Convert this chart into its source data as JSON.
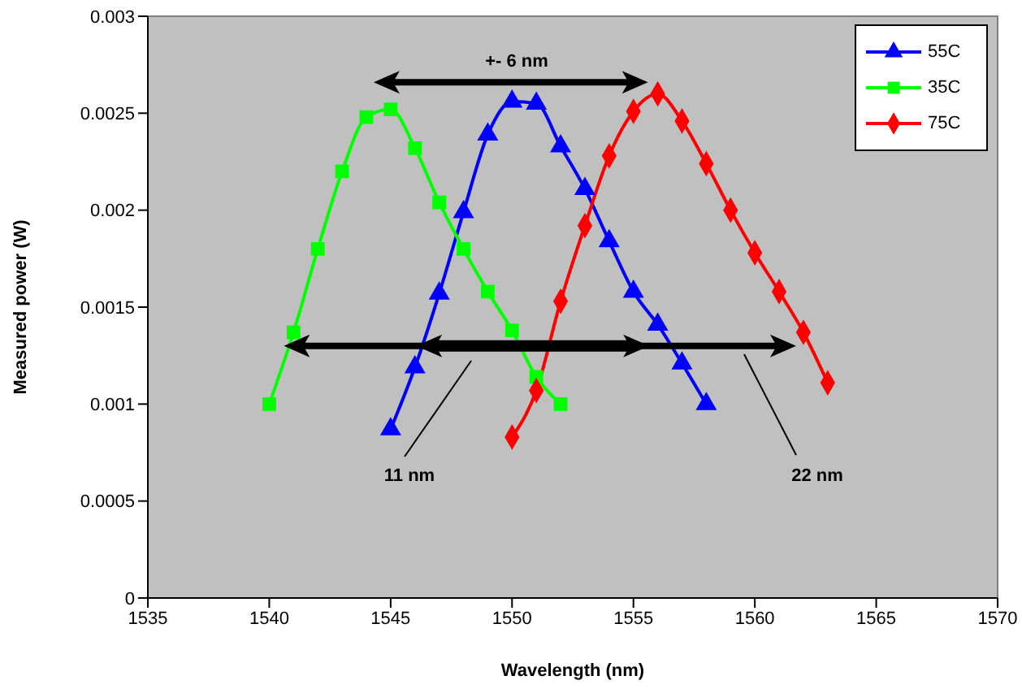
{
  "chart_data": {
    "type": "line",
    "xlabel": "Wavelength (nm)",
    "ylabel": "Measured power (W)",
    "xlim": [
      1535,
      1570
    ],
    "xticks": [
      1535,
      1540,
      1545,
      1550,
      1555,
      1560,
      1565,
      1570
    ],
    "ylim": [
      0,
      0.003
    ],
    "yticks": [
      0,
      0.0005,
      0.001,
      0.0015,
      0.002,
      0.0025,
      0.003
    ],
    "legend": "top right",
    "series": [
      {
        "name": "55C",
        "color": "#0000ff",
        "marker": "triangle",
        "x": [
          1545,
          1546,
          1547,
          1548,
          1549,
          1550,
          1551,
          1552,
          1553,
          1554,
          1555,
          1556,
          1557,
          1558
        ],
        "values": [
          0.00087,
          0.00119,
          0.00157,
          0.00199,
          0.00239,
          0.00256,
          0.00255,
          0.00233,
          0.00211,
          0.00184,
          0.00158,
          0.00141,
          0.00121,
          0.001
        ]
      },
      {
        "name": "35C",
        "color": "#00ff00",
        "marker": "square",
        "x": [
          1540,
          1541,
          1542,
          1543,
          1544,
          1545,
          1546,
          1547,
          1548,
          1549,
          1550,
          1551,
          1552
        ],
        "values": [
          0.001,
          0.00137,
          0.0018,
          0.0022,
          0.00248,
          0.00252,
          0.00232,
          0.00204,
          0.0018,
          0.00158,
          0.00138,
          0.00114,
          0.001
        ]
      },
      {
        "name": "75C",
        "color": "#ff0000",
        "marker": "diamond",
        "x": [
          1550,
          1551,
          1552,
          1553,
          1554,
          1555,
          1556,
          1557,
          1558,
          1559,
          1560,
          1561,
          1562,
          1563
        ],
        "values": [
          0.00083,
          0.00107,
          0.00153,
          0.00192,
          0.00228,
          0.00251,
          0.0026,
          0.00246,
          0.00224,
          0.002,
          0.00178,
          0.00158,
          0.00137,
          0.00111
        ]
      }
    ],
    "annotations": [
      "+- 6 nm",
      "11 nm",
      "22 nm"
    ]
  }
}
